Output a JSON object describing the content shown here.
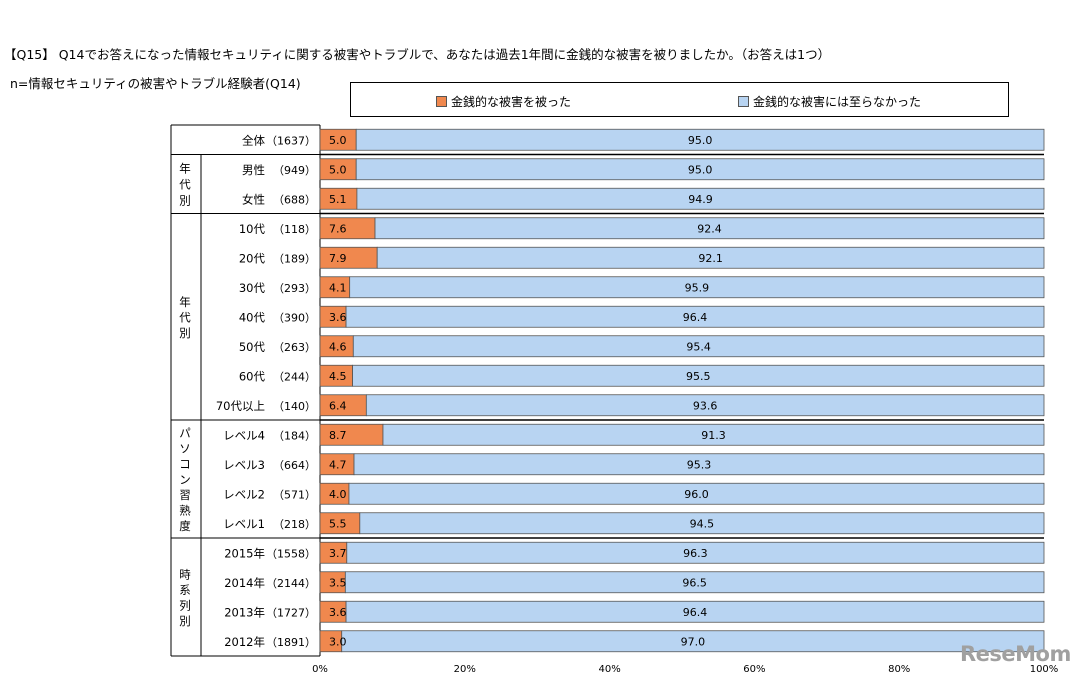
{
  "title": "【Q15】 Q14でお答えになった情報セキュリティに関する被害やトラブルで、あなたは過去1年間に金銭的な被害を被りましたか。（お答えは1つ）",
  "subtitle": "n=情報セキュリティの被害やトラブル経験者(Q14)",
  "watermark": "ReseMom",
  "colors": {
    "damaged": "#f0884e",
    "not_damaged": "#b8d4f2"
  },
  "legend": [
    {
      "label": "金銭的な被害を被った",
      "color": "#f0884e"
    },
    {
      "label": "金銭的な被害には至らなかった",
      "color": "#b8d4f2"
    }
  ],
  "chart_data": {
    "type": "bar",
    "orientation": "horizontal",
    "stacked": true,
    "xlim": [
      0,
      100
    ],
    "x_ticks": [
      "0%",
      "20%",
      "40%",
      "60%",
      "80%",
      "100%"
    ],
    "groups": [
      {
        "name": "",
        "rows": [
          0
        ]
      },
      {
        "name": "年代別",
        "rows": [
          1,
          2
        ]
      },
      {
        "name": "年代別",
        "rows": [
          3,
          4,
          5,
          6,
          7,
          8,
          9
        ]
      },
      {
        "name": "パソコン習熟度",
        "rows": [
          10,
          11,
          12,
          13
        ]
      },
      {
        "name": "時系列別",
        "rows": [
          14,
          15,
          16,
          17
        ]
      }
    ],
    "categories": [
      "全体",
      "男性",
      "女性",
      "10代",
      "20代",
      "30代",
      "40代",
      "50代",
      "60代",
      "70代以上",
      "レベル4",
      "レベル3",
      "レベル2",
      "レベル1",
      "2015年",
      "2014年",
      "2013年",
      "2012年"
    ],
    "n": [
      "（1637）",
      "（949）",
      "（688）",
      "（118）",
      "（189）",
      "（293）",
      "（390）",
      "（263）",
      "（244）",
      "（140）",
      "（184）",
      "（664）",
      "（571）",
      "（218）",
      "（1558）",
      "（2144）",
      "（1727）",
      "（1891）"
    ],
    "series": [
      {
        "name": "金銭的な被害を被った",
        "values": [
          5.0,
          5.0,
          5.1,
          7.6,
          7.9,
          4.1,
          3.6,
          4.6,
          4.5,
          6.4,
          8.7,
          4.7,
          4.0,
          5.5,
          3.7,
          3.5,
          3.6,
          3.0
        ]
      },
      {
        "name": "金銭的な被害には至らなかった",
        "values": [
          95.0,
          95.0,
          94.9,
          92.4,
          92.1,
          95.9,
          96.4,
          95.4,
          95.5,
          93.6,
          91.3,
          95.3,
          96.0,
          94.5,
          96.3,
          96.5,
          96.4,
          97.0
        ]
      }
    ]
  }
}
